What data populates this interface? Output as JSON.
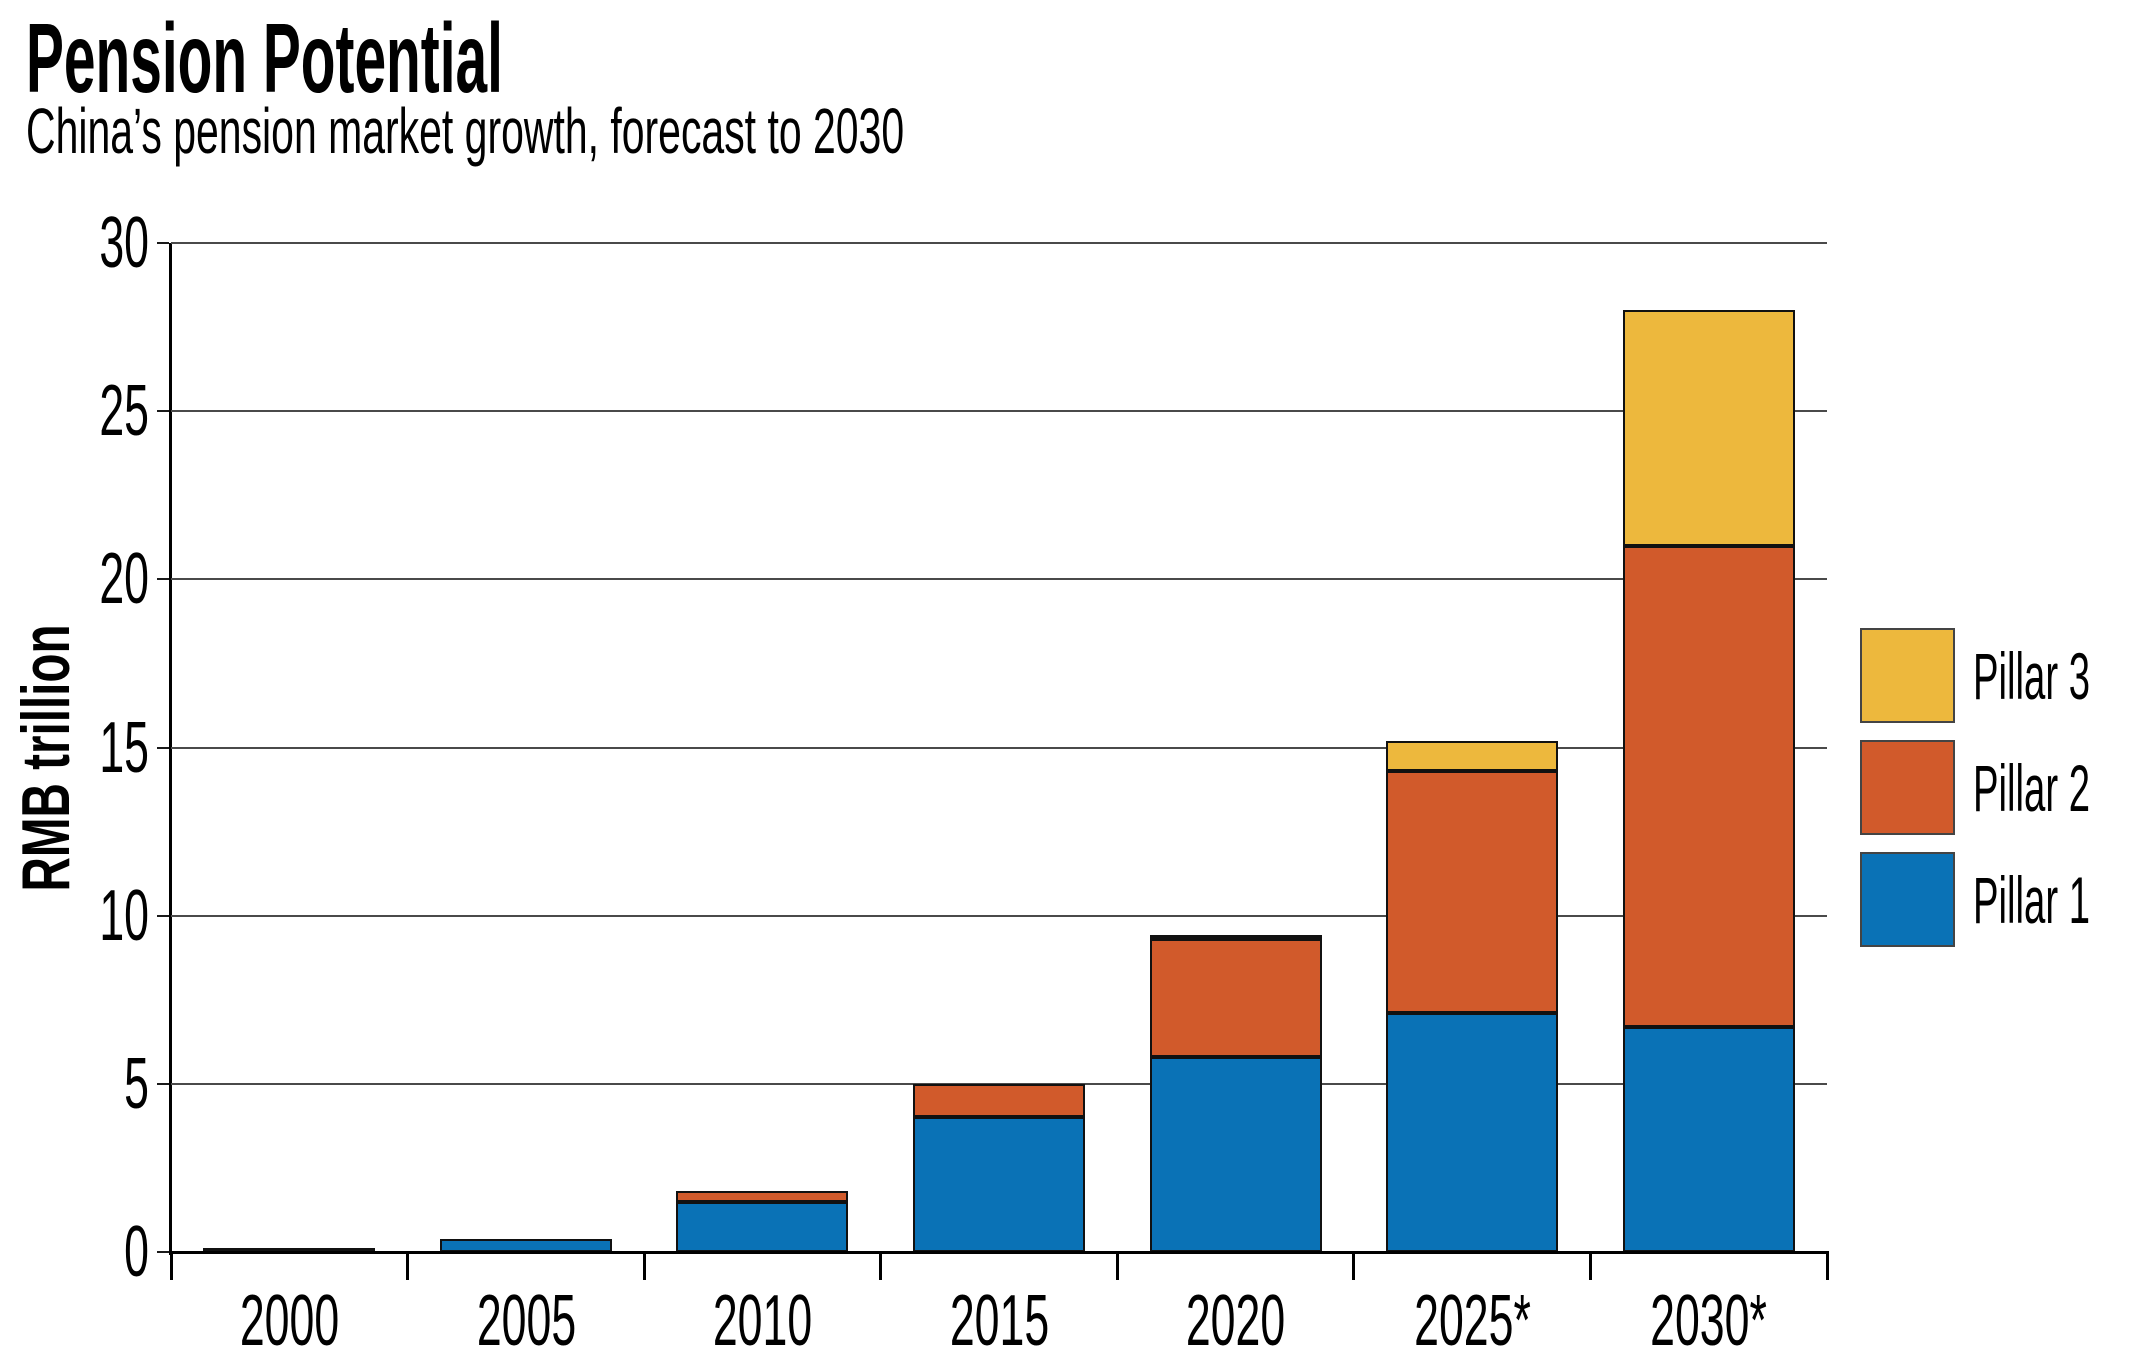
{
  "header": {
    "title": "Pension Potential",
    "subtitle": "China’s pension market growth, forecast to 2030"
  },
  "chart_data": {
    "type": "bar",
    "stacked": true,
    "title": "Pension Potential",
    "subtitle": "China’s pension market growth, forecast to 2030",
    "xlabel": "",
    "ylabel": "RMB trillion",
    "unit": "RMB trillion",
    "ylim": [
      0,
      30
    ],
    "yticks": [
      0,
      5,
      10,
      15,
      20,
      25,
      30
    ],
    "grid": "horizontal",
    "categories": [
      "2000",
      "2005",
      "2010",
      "2015",
      "2020",
      "2025*",
      "2030*"
    ],
    "series": [
      {
        "name": "Pillar 1",
        "color": "#0a72b6",
        "values": [
          0.1,
          0.4,
          1.5,
          4.0,
          5.8,
          7.1,
          6.7
        ]
      },
      {
        "name": "Pillar 2",
        "color": "#d15a2b",
        "values": [
          0,
          0,
          0.3,
          1.0,
          3.5,
          7.2,
          14.3
        ]
      },
      {
        "name": "Pillar 3",
        "color": "#edb83d",
        "values": [
          0,
          0,
          0,
          0,
          0.1,
          0.9,
          7.0
        ]
      }
    ],
    "totals": [
      0.1,
      0.4,
      1.8,
      5.0,
      9.4,
      15.2,
      28.0
    ],
    "legend": {
      "position": "right",
      "entries": [
        {
          "label": "Pillar 3",
          "color": "#edb83d"
        },
        {
          "label": "Pillar 2",
          "color": "#d15a2b"
        },
        {
          "label": "Pillar 1",
          "color": "#0a72b6"
        }
      ]
    }
  },
  "colors": {
    "pillar1_blue": "#0a72b6",
    "pillar2_orange": "#d15a2b",
    "pillar3_yellow": "#edb83d",
    "gridline": "#4a4a4a",
    "axis": "#000000",
    "text": "#000000",
    "background": "#ffffff"
  }
}
